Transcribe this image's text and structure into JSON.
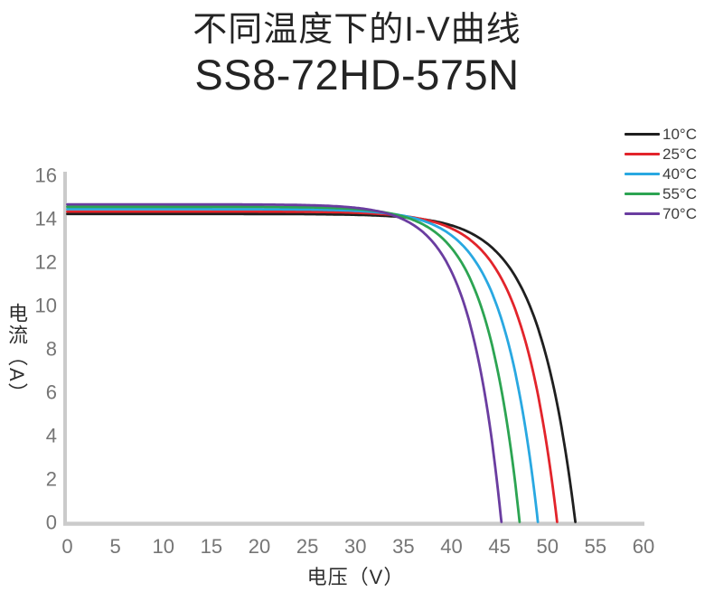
{
  "title": {
    "line1": "不同温度下的I-V曲线",
    "line2": "SS8-72HD-575N"
  },
  "chart_data": {
    "type": "line",
    "title": "不同温度下的I-V曲线 SS8-72HD-575N",
    "xlabel": "电压（V）",
    "ylabel": "电流（A）",
    "xlim": [
      0,
      60
    ],
    "ylim": [
      0,
      16
    ],
    "x_ticks": [
      0,
      5,
      10,
      15,
      20,
      25,
      30,
      35,
      40,
      45,
      50,
      55,
      60
    ],
    "y_ticks": [
      0,
      2,
      4,
      6,
      8,
      10,
      12,
      14,
      16
    ],
    "grid": false,
    "legend_position": "top-right",
    "legend_entries": [
      "10°C",
      "25°C",
      "40°C",
      "55°C",
      "70°C"
    ],
    "curve_model": "I(V) = Isc*(1 - (exp(k*(V/Voc-1)) - exp(-k)) / (1 - exp(-k))), k = 13.5",
    "k": 13.5,
    "series": [
      {
        "name": "10°C",
        "color": "#1f1f1f",
        "isc": 14.2,
        "voc": 52.9
      },
      {
        "name": "25°C",
        "color": "#e2242b",
        "isc": 14.31,
        "voc": 51.0
      },
      {
        "name": "40°C",
        "color": "#29a8e1",
        "isc": 14.42,
        "voc": 49.0
      },
      {
        "name": "55°C",
        "color": "#2ca452",
        "isc": 14.53,
        "voc": 47.1
      },
      {
        "name": "70°C",
        "color": "#6a3da0",
        "isc": 14.64,
        "voc": 45.2
      }
    ]
  },
  "colors": {
    "background": "#ffffff",
    "axis_line": "#cbcbcb",
    "tick_label": "#757575",
    "axis_label": "#2e2e2e",
    "legend_label": "#3c3c3c",
    "title": "#242424"
  }
}
